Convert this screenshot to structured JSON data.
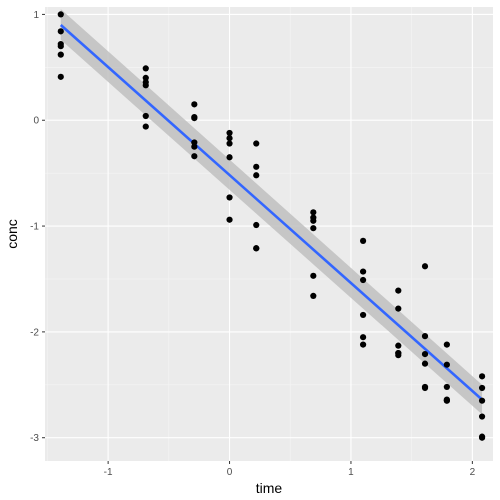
{
  "chart_data": {
    "type": "scatter",
    "xlabel": "time",
    "ylabel": "conc",
    "xlim": [
      -1.52,
      2.17
    ],
    "ylim": [
      -3.22,
      1.07
    ],
    "x_ticks": [
      -1,
      0,
      1,
      2
    ],
    "x_tick_labels": [
      "-1",
      "0",
      "1",
      "2"
    ],
    "y_ticks": [
      1,
      0,
      -1,
      -2,
      -3
    ],
    "y_tick_labels": [
      "1",
      "0",
      "-1",
      "-2",
      "-3"
    ],
    "grid": true,
    "colors": {
      "panel_background": "#ebebeb",
      "grid_major": "#ffffff",
      "grid_minor": "#f5f5f5",
      "points": "#000000",
      "fit_line": "#3366ff",
      "confidence_band": "#bfbfbf"
    },
    "points": {
      "x": [
        -1.39,
        -1.39,
        -1.39,
        -1.39,
        -1.39,
        -1.39,
        -0.69,
        -0.69,
        -0.69,
        -0.69,
        -0.69,
        -0.69,
        -0.29,
        -0.29,
        -0.29,
        -0.29,
        -0.29,
        -0.29,
        0.0,
        0.0,
        0.0,
        0.0,
        0.0,
        0.0,
        0.22,
        0.22,
        0.22,
        0.22,
        0.22,
        0.22,
        0.69,
        0.69,
        0.69,
        0.69,
        0.69,
        0.69,
        1.1,
        1.1,
        1.1,
        1.1,
        1.1,
        1.1,
        1.39,
        1.39,
        1.39,
        1.39,
        1.39,
        1.39,
        1.61,
        1.61,
        1.61,
        1.61,
        1.61,
        1.61,
        1.79,
        1.79,
        1.79,
        1.79,
        1.79,
        1.79,
        2.08,
        2.08,
        2.08,
        2.08,
        2.08,
        2.08
      ],
      "y": [
        1.0,
        0.84,
        0.72,
        0.7,
        0.62,
        0.41,
        0.49,
        0.4,
        0.36,
        0.33,
        0.04,
        -0.06,
        0.15,
        0.03,
        0.02,
        -0.21,
        -0.25,
        -0.34,
        -0.12,
        -0.17,
        -0.22,
        -0.35,
        -0.73,
        -0.94,
        -0.22,
        -0.44,
        -0.52,
        -0.99,
        -1.21,
        -1.21,
        -0.87,
        -0.92,
        -0.95,
        -1.02,
        -1.47,
        -1.66,
        -1.14,
        -1.43,
        -1.51,
        -1.84,
        -2.05,
        -2.12,
        -1.61,
        -1.78,
        -2.13,
        -2.2,
        -2.2,
        -2.22,
        -1.38,
        -2.04,
        -2.21,
        -2.3,
        -2.52,
        -2.53,
        -2.12,
        -2.31,
        -2.52,
        -2.64,
        -2.65,
        -2.65,
        -2.42,
        -2.53,
        -2.65,
        -2.8,
        -2.99,
        -3.0
      ]
    },
    "fit": {
      "method": "lm",
      "x": [
        -1.39,
        2.08
      ],
      "y": [
        0.9,
        -2.64
      ],
      "se_upper": [
        1.05,
        -2.5
      ],
      "se_lower": [
        0.76,
        -2.78
      ]
    }
  }
}
